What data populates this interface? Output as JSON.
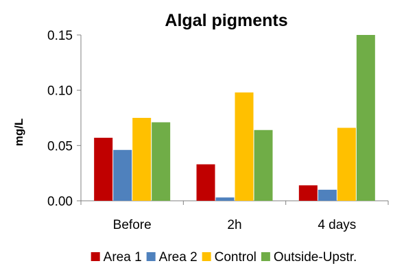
{
  "chart_data": {
    "type": "bar",
    "title": "Algal pigments",
    "xlabel": "",
    "ylabel": "mg/L",
    "ylim": [
      0,
      0.15
    ],
    "yticks": [
      "0.00",
      "0.05",
      "0.10",
      "0.15"
    ],
    "categories": [
      "Before",
      "2h",
      "4 days"
    ],
    "series": [
      {
        "name": "Area 1",
        "color": "#C00000",
        "values": [
          0.057,
          0.033,
          0.014
        ]
      },
      {
        "name": "Area 2",
        "color": "#4F81BD",
        "values": [
          0.046,
          0.003,
          0.01
        ]
      },
      {
        "name": "Control",
        "color": "#FFC000",
        "values": [
          0.075,
          0.098,
          0.066
        ]
      },
      {
        "name": "Outside-Upstr.",
        "color": "#70AD47",
        "values": [
          0.071,
          0.064,
          0.15
        ]
      }
    ],
    "grid": false,
    "legend_position": "bottom"
  }
}
